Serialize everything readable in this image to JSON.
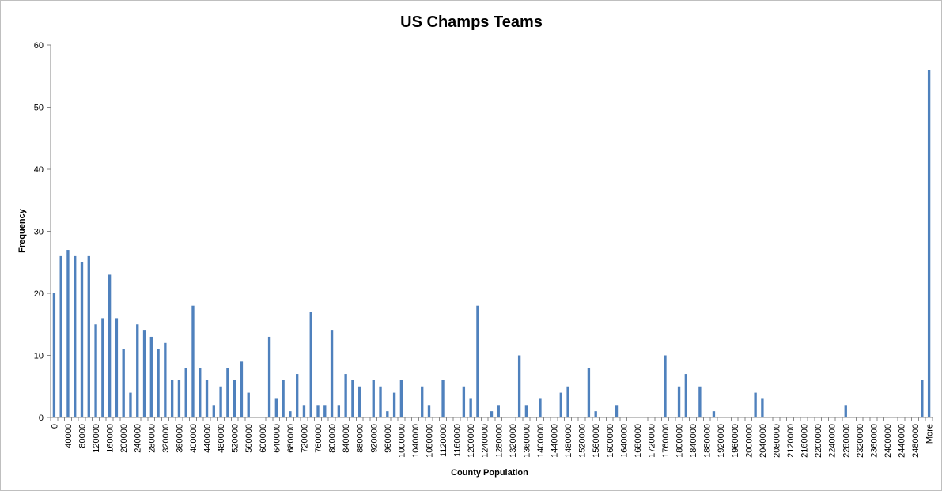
{
  "chart_data": {
    "type": "bar",
    "title": "US Champs Teams",
    "xlabel": "County Population",
    "ylabel": "Frequency",
    "ylim": [
      0,
      60
    ],
    "yticks": [
      0,
      10,
      20,
      30,
      40,
      50,
      60
    ],
    "grid": false,
    "legend": "none",
    "bar_color": "#4f81bd",
    "categories": [
      "0",
      "20000",
      "40000",
      "60000",
      "80000",
      "100000",
      "120000",
      "140000",
      "160000",
      "180000",
      "200000",
      "220000",
      "240000",
      "260000",
      "280000",
      "300000",
      "320000",
      "340000",
      "360000",
      "380000",
      "400000",
      "420000",
      "440000",
      "460000",
      "480000",
      "500000",
      "520000",
      "540000",
      "560000",
      "580000",
      "600000",
      "620000",
      "640000",
      "660000",
      "680000",
      "700000",
      "720000",
      "740000",
      "760000",
      "780000",
      "800000",
      "820000",
      "840000",
      "860000",
      "880000",
      "900000",
      "920000",
      "940000",
      "960000",
      "980000",
      "1000000",
      "1020000",
      "1040000",
      "1060000",
      "1080000",
      "1100000",
      "1120000",
      "1140000",
      "1160000",
      "1180000",
      "1200000",
      "1220000",
      "1240000",
      "1260000",
      "1280000",
      "1300000",
      "1320000",
      "1340000",
      "1360000",
      "1380000",
      "1400000",
      "1420000",
      "1440000",
      "1460000",
      "1480000",
      "1500000",
      "1520000",
      "1540000",
      "1560000",
      "1580000",
      "1600000",
      "1620000",
      "1640000",
      "1660000",
      "1680000",
      "1700000",
      "1720000",
      "1740000",
      "1760000",
      "1780000",
      "1800000",
      "1820000",
      "1840000",
      "1860000",
      "1880000",
      "1900000",
      "1920000",
      "1940000",
      "1960000",
      "1980000",
      "2000000",
      "2020000",
      "2040000",
      "2060000",
      "2080000",
      "2100000",
      "2120000",
      "2140000",
      "2160000",
      "2180000",
      "2200000",
      "2220000",
      "2240000",
      "2260000",
      "2280000",
      "2300000",
      "2320000",
      "2340000",
      "2360000",
      "2380000",
      "2400000",
      "2420000",
      "2440000",
      "2460000",
      "2480000",
      "2500000",
      "More"
    ],
    "x_tick_labels": [
      "0",
      "40000",
      "80000",
      "120000",
      "160000",
      "200000",
      "240000",
      "280000",
      "320000",
      "360000",
      "400000",
      "440000",
      "480000",
      "520000",
      "560000",
      "600000",
      "640000",
      "680000",
      "720000",
      "760000",
      "800000",
      "840000",
      "880000",
      "920000",
      "960000",
      "1000000",
      "1040000",
      "1080000",
      "1120000",
      "1160000",
      "1200000",
      "1240000",
      "1280000",
      "1320000",
      "1360000",
      "1400000",
      "1440000",
      "1480000",
      "1520000",
      "1560000",
      "1600000",
      "1640000",
      "1680000",
      "1720000",
      "1760000",
      "1800000",
      "1840000",
      "1880000",
      "1920000",
      "1960000",
      "2000000",
      "2040000",
      "2080000",
      "2120000",
      "2160000",
      "2200000",
      "2240000",
      "2280000",
      "2320000",
      "2360000",
      "2400000",
      "2440000",
      "2480000",
      "More"
    ],
    "values": [
      20,
      26,
      27,
      26,
      25,
      26,
      15,
      16,
      23,
      16,
      11,
      4,
      15,
      14,
      13,
      11,
      12,
      6,
      6,
      8,
      18,
      8,
      6,
      2,
      5,
      8,
      6,
      9,
      4,
      0,
      0,
      13,
      3,
      6,
      1,
      7,
      2,
      17,
      2,
      2,
      14,
      2,
      7,
      6,
      5,
      0,
      6,
      5,
      1,
      4,
      6,
      0,
      0,
      5,
      2,
      0,
      6,
      0,
      0,
      5,
      3,
      18,
      0,
      1,
      2,
      0,
      0,
      10,
      2,
      0,
      3,
      0,
      0,
      4,
      5,
      0,
      0,
      8,
      1,
      0,
      0,
      2,
      0,
      0,
      0,
      0,
      0,
      0,
      10,
      0,
      5,
      7,
      0,
      5,
      0,
      1,
      0,
      0,
      0,
      0,
      0,
      4,
      3,
      0,
      0,
      0,
      0,
      0,
      0,
      0,
      0,
      0,
      0,
      0,
      2,
      0,
      0,
      0,
      0,
      0,
      0,
      0,
      0,
      0,
      0,
      6,
      56
    ]
  }
}
